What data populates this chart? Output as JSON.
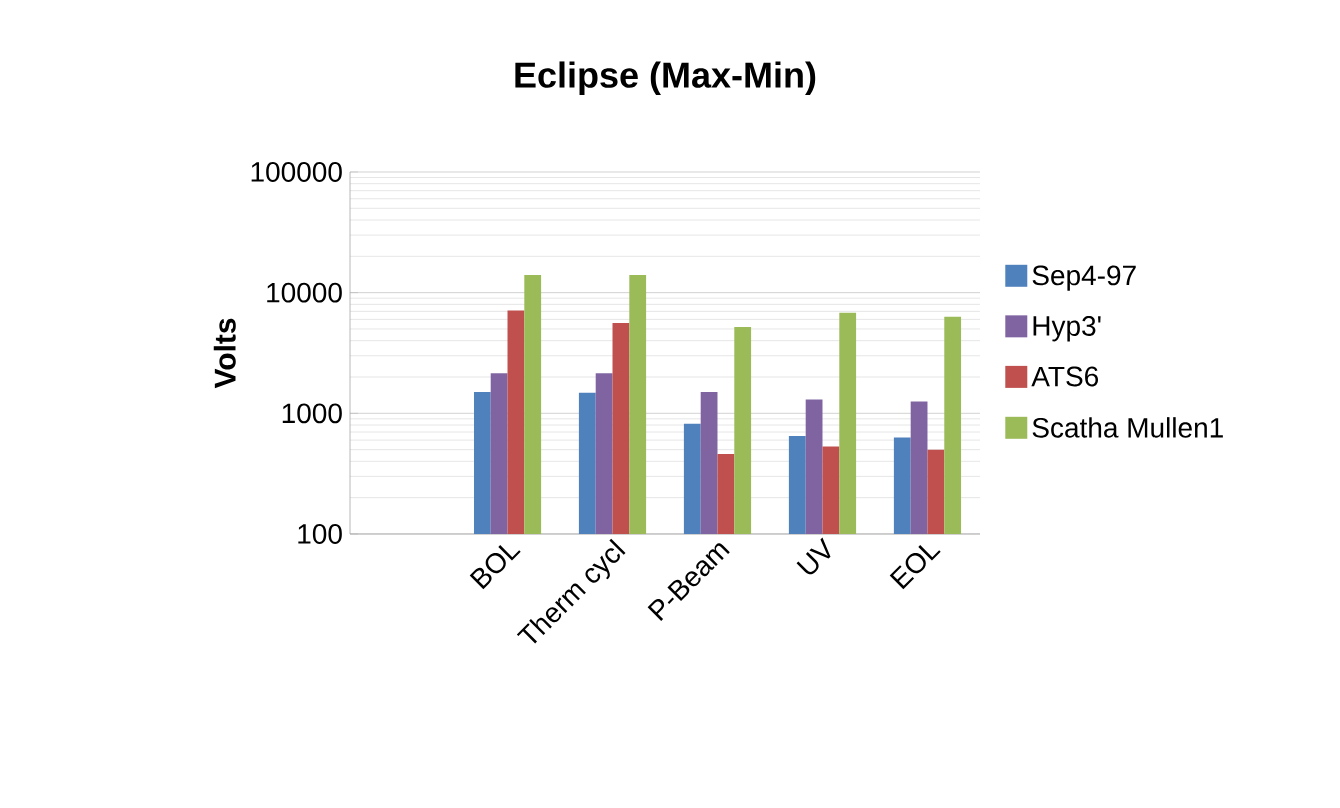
{
  "chart_data": {
    "type": "bar",
    "title": "Eclipse (Max-Min)",
    "ylabel": "Volts",
    "categories": [
      null,
      "BOL",
      "Therm cycl",
      "P-Beam",
      "UV",
      "EOL"
    ],
    "series": [
      {
        "name": "Sep4-97",
        "color": "#4f81bd",
        "values": [
          null,
          1500,
          1480,
          820,
          650,
          630
        ]
      },
      {
        "name": "Hyp3'",
        "color": "#8064a2",
        "values": [
          null,
          2150,
          2150,
          1500,
          1300,
          1250
        ]
      },
      {
        "name": "ATS6",
        "color": "#c0504d",
        "values": [
          null,
          7100,
          5600,
          460,
          530,
          500
        ]
      },
      {
        "name": "Scatha Mullen1",
        "color": "#9bbb59",
        "values": [
          null,
          14000,
          14000,
          5200,
          6800,
          6300
        ]
      }
    ],
    "log": "y",
    "ylim": [
      100,
      100000
    ],
    "yticks": [
      100,
      1000,
      10000,
      100000
    ],
    "grid": "y",
    "legend": "right"
  }
}
